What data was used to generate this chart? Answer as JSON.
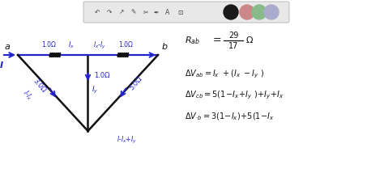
{
  "bg_color": "#ffffff",
  "toolbar_color": "#e0e0e0",
  "circuit_color": "#2222cc",
  "black_color": "#111111",
  "toolbar_icons": [
    "↶",
    "↷",
    "↗",
    "✎",
    "✂",
    "✒",
    "A",
    "⊡"
  ],
  "toolbar_dots": [
    "#1a1a1a",
    "#cc8888",
    "#88bb88",
    "#aaaacc"
  ],
  "node_a_label": "a",
  "node_b_label": "b",
  "current_I": "I",
  "top_left_res": "1.0Ω",
  "top_left_cur": "I_x",
  "top_right_cur": "I_x-I_y",
  "top_right_res": "1.0Ω",
  "left_diag_res": "3.0Ω",
  "left_diag_cur": "I-I_x",
  "mid_vert_res": "1.0Ω",
  "mid_vert_cur": "I_y",
  "right_diag_res": "5.0Ω",
  "bot_cur": "I-I_x+I_y",
  "Rab_lhs": "R_{ab}",
  "Rab_num": "29",
  "Rab_den": "17",
  "Rab_unit": "Ω",
  "eq1": "\\Delta V_{ab} = I_x +(I_x -I_y )",
  "eq2": "\\Delta V_{cb} = 5(1-I_x +I_y ) +I_y +I_x",
  "eq3": "\\Delta V_{\\cdot b} = 3(1-I_x)+5(1-I_x"
}
